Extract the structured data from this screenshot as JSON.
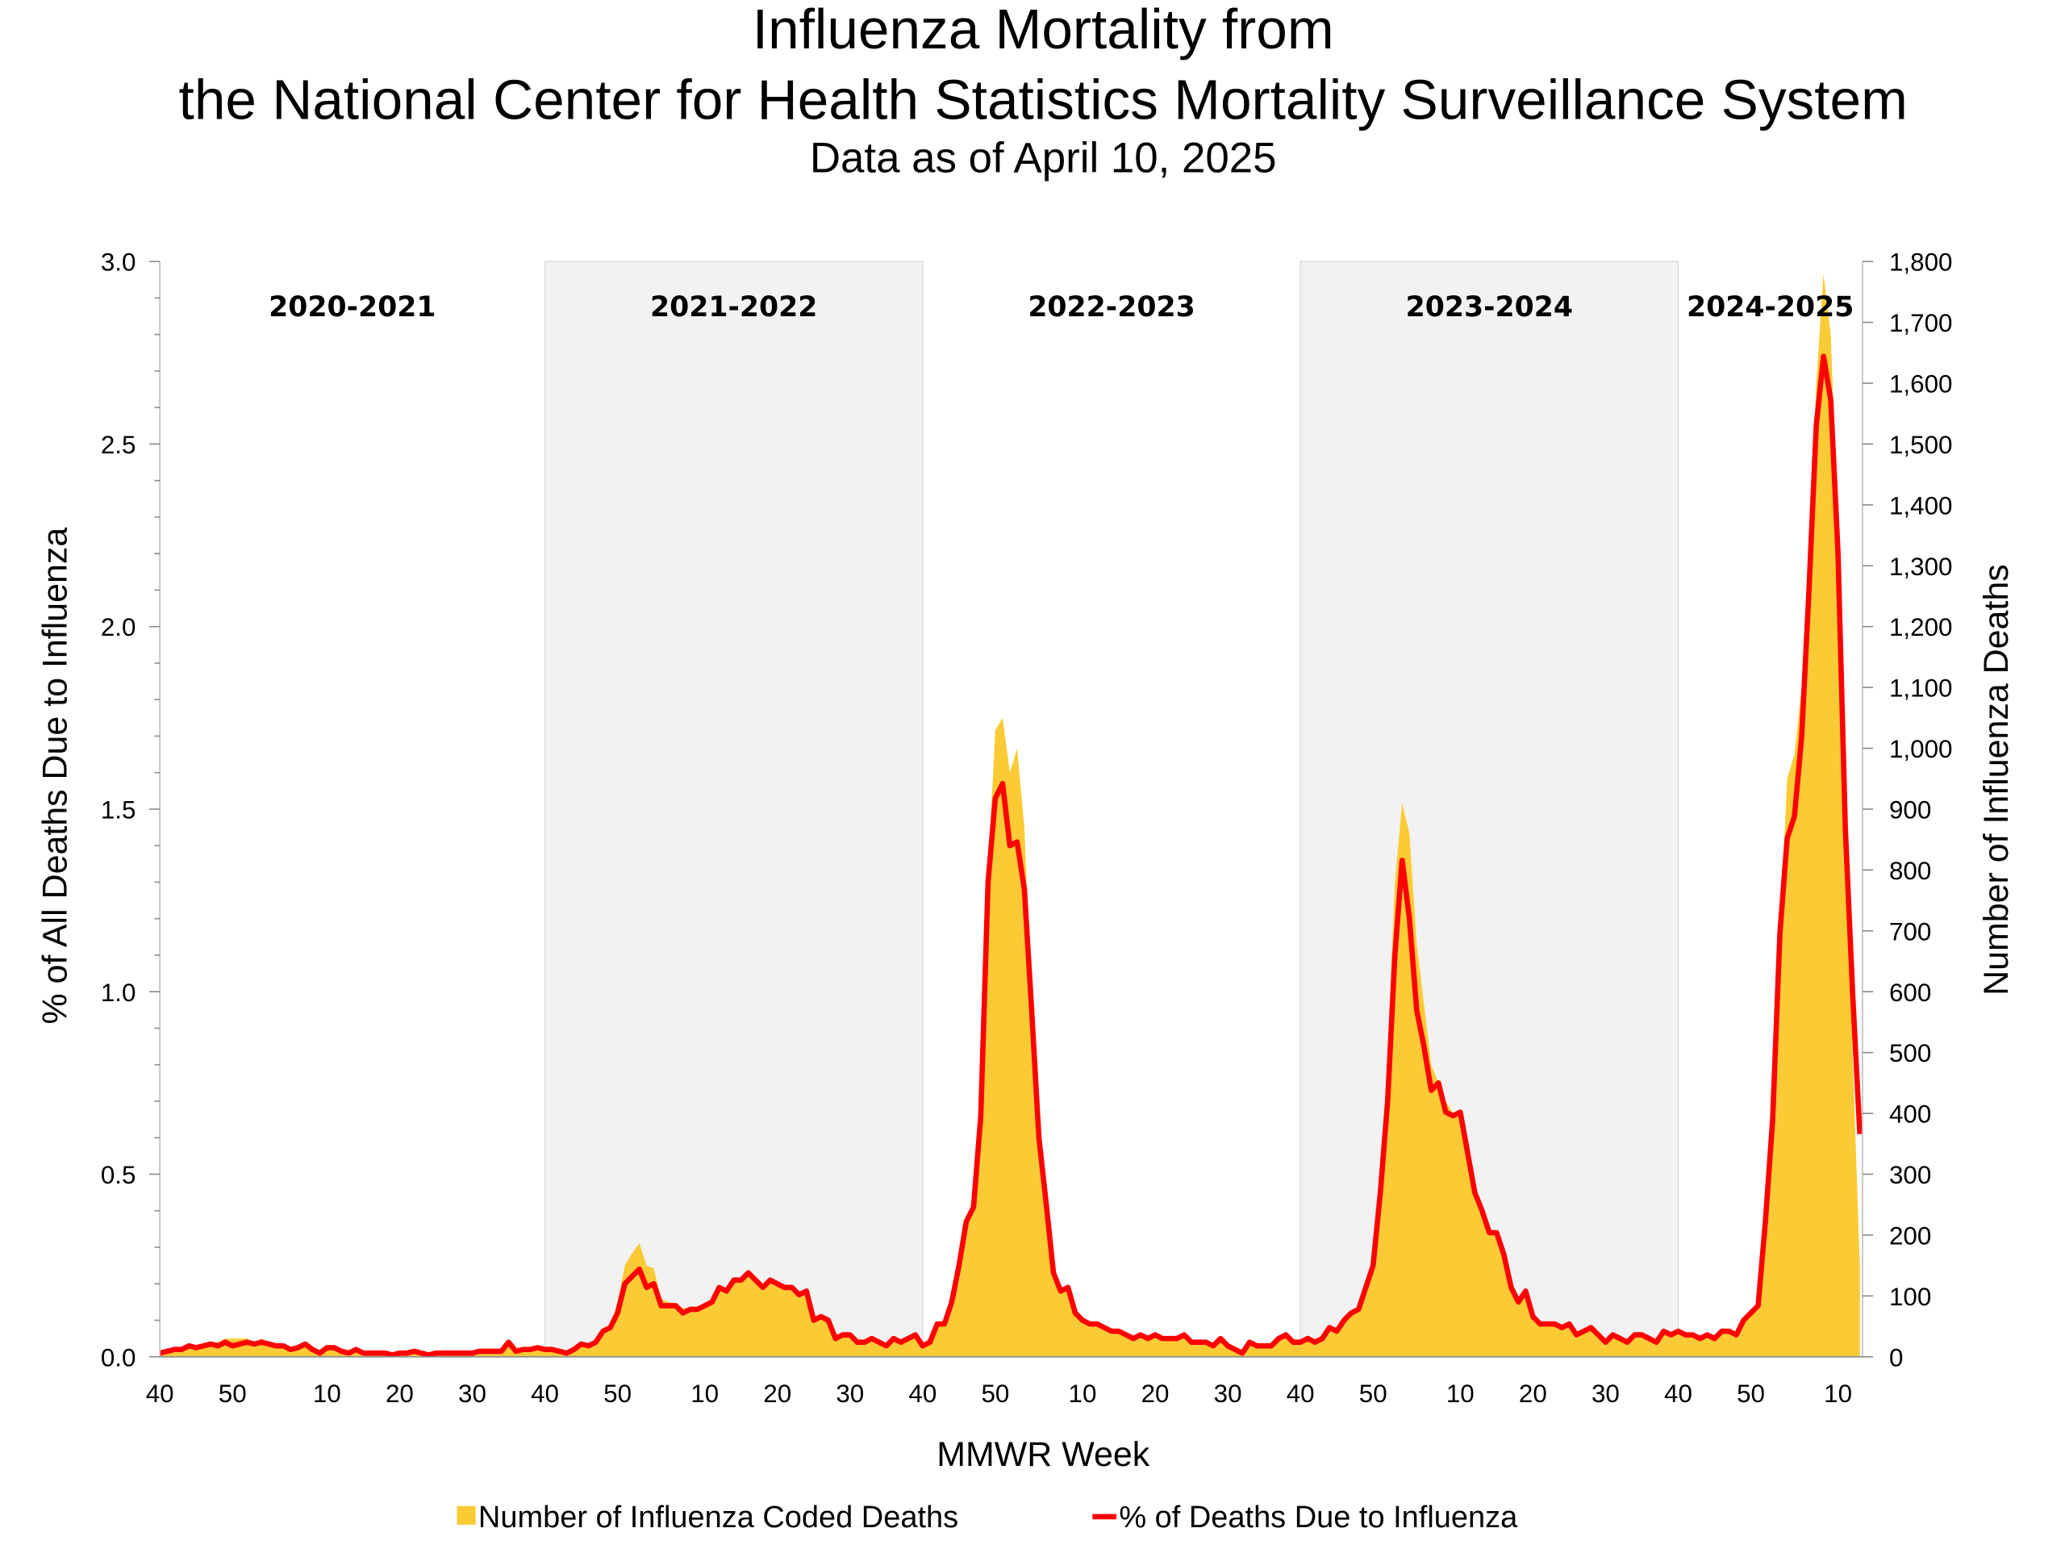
{
  "chart_data": {
    "type": "area+line",
    "title": "Influenza Mortality from",
    "title_line2": "the National Center for Health Statistics Mortality Surveillance System",
    "subtitle": "Data as of April 10, 2025",
    "xlabel": "MMWR Week",
    "ylabel_left": "% of All Deaths Due to Influenza",
    "ylabel_right": "Number of Influenza Deaths",
    "ylim_left": [
      0,
      3.0
    ],
    "ylim_right": [
      0,
      1800
    ],
    "left_ticks": [
      "0.0",
      "0.5",
      "1.0",
      "1.5",
      "2.0",
      "2.5",
      "3.0"
    ],
    "right_ticks": [
      "0",
      "100",
      "200",
      "300",
      "400",
      "500",
      "600",
      "700",
      "800",
      "900",
      "1,000",
      "1,100",
      "1,200",
      "1,300",
      "1,400",
      "1,500",
      "1,600",
      "1,700",
      "1,800"
    ],
    "grid": false,
    "legend_position": "bottom",
    "colors": {
      "deaths_area": "#FBCB36",
      "pct_line": "#FF0000",
      "shade": "#F2F2F2"
    },
    "series": [
      {
        "name": "Number of Influenza Coded Deaths",
        "type": "area",
        "axis": "right"
      },
      {
        "name": "% of Deaths Due to Influenza",
        "type": "line",
        "axis": "left"
      }
    ],
    "seasons": [
      {
        "label": "2020-2021",
        "shaded": false,
        "weeks": [
          40,
          41,
          42,
          43,
          44,
          45,
          46,
          47,
          48,
          49,
          50,
          51,
          52,
          53,
          1,
          2,
          3,
          4,
          5,
          6,
          7,
          8,
          9,
          10,
          11,
          12,
          13,
          14,
          15,
          16,
          17,
          18,
          19,
          20,
          21,
          22,
          23,
          24,
          25,
          26,
          27,
          28,
          29,
          30,
          31,
          32,
          33,
          34,
          35,
          36,
          37,
          38,
          39
        ],
        "pct": [
          0.01,
          0.015,
          0.02,
          0.02,
          0.03,
          0.025,
          0.03,
          0.035,
          0.03,
          0.04,
          0.03,
          0.035,
          0.04,
          0.035,
          0.04,
          0.035,
          0.03,
          0.03,
          0.02,
          0.025,
          0.035,
          0.02,
          0.01,
          0.025,
          0.025,
          0.015,
          0.01,
          0.02,
          0.01,
          0.01,
          0.01,
          0.01,
          0.005,
          0.01,
          0.01,
          0.015,
          0.01,
          0.005,
          0.01,
          0.01,
          0.01,
          0.01,
          0.01,
          0.01,
          0.015,
          0.015,
          0.015,
          0.015,
          0.04,
          0.015,
          0.02,
          0.02,
          0.025
        ],
        "deaths": [
          6,
          9,
          12,
          12,
          18,
          15,
          18,
          21,
          24,
          30,
          30,
          30,
          30,
          24,
          30,
          24,
          21,
          18,
          12,
          15,
          18,
          12,
          6,
          15,
          15,
          9,
          6,
          12,
          6,
          6,
          6,
          6,
          3,
          6,
          6,
          9,
          6,
          3,
          6,
          6,
          6,
          6,
          6,
          6,
          9,
          9,
          9,
          9,
          24,
          9,
          12,
          12,
          15
        ]
      },
      {
        "label": "2021-2022",
        "shaded": true,
        "weeks": [
          40,
          41,
          42,
          43,
          44,
          45,
          46,
          47,
          48,
          49,
          50,
          51,
          52,
          1,
          2,
          3,
          4,
          5,
          6,
          7,
          8,
          9,
          10,
          11,
          12,
          13,
          14,
          15,
          16,
          17,
          18,
          19,
          20,
          21,
          22,
          23,
          24,
          25,
          26,
          27,
          28,
          29,
          30,
          31,
          32,
          33,
          34,
          35,
          36,
          37,
          38,
          39
        ],
        "pct": [
          0.02,
          0.02,
          0.015,
          0.01,
          0.02,
          0.035,
          0.03,
          0.04,
          0.07,
          0.08,
          0.12,
          0.2,
          0.22,
          0.24,
          0.19,
          0.2,
          0.14,
          0.14,
          0.14,
          0.12,
          0.13,
          0.13,
          0.14,
          0.15,
          0.19,
          0.18,
          0.21,
          0.21,
          0.23,
          0.21,
          0.19,
          0.21,
          0.2,
          0.19,
          0.19,
          0.17,
          0.18,
          0.1,
          0.11,
          0.1,
          0.05,
          0.06,
          0.06,
          0.04,
          0.04,
          0.05,
          0.04,
          0.03,
          0.05,
          0.04,
          0.05,
          0.06
        ],
        "deaths": [
          12,
          12,
          9,
          6,
          12,
          21,
          18,
          24,
          42,
          48,
          90,
          150,
          170,
          187,
          150,
          145,
          95,
          90,
          88,
          80,
          80,
          80,
          85,
          92,
          110,
          110,
          125,
          125,
          135,
          125,
          115,
          125,
          118,
          112,
          110,
          100,
          100,
          60,
          62,
          55,
          30,
          35,
          35,
          24,
          22,
          28,
          22,
          18,
          28,
          22,
          28,
          35
        ]
      },
      {
        "label": "2022-2023",
        "shaded": false,
        "weeks": [
          40,
          41,
          42,
          43,
          44,
          45,
          46,
          47,
          48,
          49,
          50,
          51,
          52,
          1,
          2,
          3,
          4,
          5,
          6,
          7,
          8,
          9,
          10,
          11,
          12,
          13,
          14,
          15,
          16,
          17,
          18,
          19,
          20,
          21,
          22,
          23,
          24,
          25,
          26,
          27,
          28,
          29,
          30,
          31,
          32,
          33,
          34,
          35,
          36,
          37,
          38,
          39
        ],
        "pct": [
          0.03,
          0.04,
          0.09,
          0.09,
          0.15,
          0.25,
          0.37,
          0.41,
          0.66,
          1.3,
          1.53,
          1.57,
          1.4,
          1.41,
          1.28,
          0.95,
          0.6,
          0.42,
          0.23,
          0.18,
          0.19,
          0.12,
          0.1,
          0.09,
          0.09,
          0.08,
          0.07,
          0.07,
          0.06,
          0.05,
          0.06,
          0.05,
          0.06,
          0.05,
          0.05,
          0.05,
          0.06,
          0.04,
          0.04,
          0.04,
          0.03,
          0.05,
          0.03,
          0.02,
          0.01,
          0.04,
          0.03,
          0.03,
          0.03,
          0.05,
          0.06,
          0.04
        ],
        "deaths": [
          18,
          24,
          54,
          54,
          90,
          150,
          225,
          250,
          420,
          800,
          1030,
          1050,
          960,
          1000,
          870,
          580,
          360,
          250,
          140,
          110,
          115,
          72,
          60,
          54,
          54,
          48,
          42,
          42,
          36,
          30,
          36,
          30,
          36,
          30,
          30,
          30,
          36,
          24,
          24,
          24,
          18,
          30,
          18,
          12,
          6,
          24,
          18,
          18,
          18,
          30,
          36,
          24
        ]
      },
      {
        "label": "2023-2024",
        "shaded": true,
        "weeks": [
          40,
          41,
          42,
          43,
          44,
          45,
          46,
          47,
          48,
          49,
          50,
          51,
          52,
          1,
          2,
          3,
          4,
          5,
          6,
          7,
          8,
          9,
          10,
          11,
          12,
          13,
          14,
          15,
          16,
          17,
          18,
          19,
          20,
          21,
          22,
          23,
          24,
          25,
          26,
          27,
          28,
          29,
          30,
          31,
          32,
          33,
          34,
          35,
          36,
          37,
          38,
          39
        ],
        "pct": [
          0.04,
          0.05,
          0.04,
          0.05,
          0.08,
          0.07,
          0.1,
          0.12,
          0.13,
          0.19,
          0.25,
          0.45,
          0.7,
          1.1,
          1.36,
          1.2,
          0.95,
          0.85,
          0.73,
          0.75,
          0.67,
          0.66,
          0.67,
          0.56,
          0.45,
          0.4,
          0.34,
          0.34,
          0.28,
          0.19,
          0.15,
          0.18,
          0.11,
          0.09,
          0.09,
          0.09,
          0.08,
          0.09,
          0.06,
          0.07,
          0.08,
          0.06,
          0.04,
          0.06,
          0.05,
          0.04,
          0.06,
          0.06,
          0.05,
          0.04,
          0.07,
          0.06
        ],
        "deaths": [
          24,
          30,
          24,
          30,
          48,
          42,
          60,
          72,
          78,
          114,
          150,
          270,
          500,
          780,
          910,
          860,
          680,
          580,
          480,
          450,
          420,
          400,
          400,
          330,
          270,
          240,
          204,
          204,
          168,
          114,
          90,
          108,
          66,
          54,
          54,
          54,
          48,
          54,
          36,
          42,
          48,
          36,
          24,
          36,
          30,
          24,
          36,
          36,
          30,
          24,
          42,
          36
        ]
      },
      {
        "label": "2024-2025",
        "shaded": false,
        "weeks": [
          40,
          41,
          42,
          43,
          44,
          45,
          46,
          47,
          48,
          49,
          50,
          51,
          52,
          1,
          2,
          3,
          4,
          5,
          6,
          7,
          8,
          9,
          10,
          11,
          12,
          13
        ],
        "pct": [
          0.07,
          0.06,
          0.06,
          0.05,
          0.06,
          0.05,
          0.07,
          0.07,
          0.06,
          0.1,
          0.12,
          0.14,
          0.37,
          0.65,
          1.16,
          1.42,
          1.48,
          1.7,
          2.1,
          2.55,
          2.74,
          2.62,
          2.2,
          1.45,
          1.0,
          0.61
        ],
        "deaths": [
          42,
          36,
          36,
          30,
          36,
          30,
          42,
          42,
          36,
          60,
          72,
          84,
          222,
          390,
          700,
          950,
          990,
          1100,
          1300,
          1600,
          1780,
          1680,
          1350,
          850,
          500,
          150
        ]
      }
    ]
  }
}
